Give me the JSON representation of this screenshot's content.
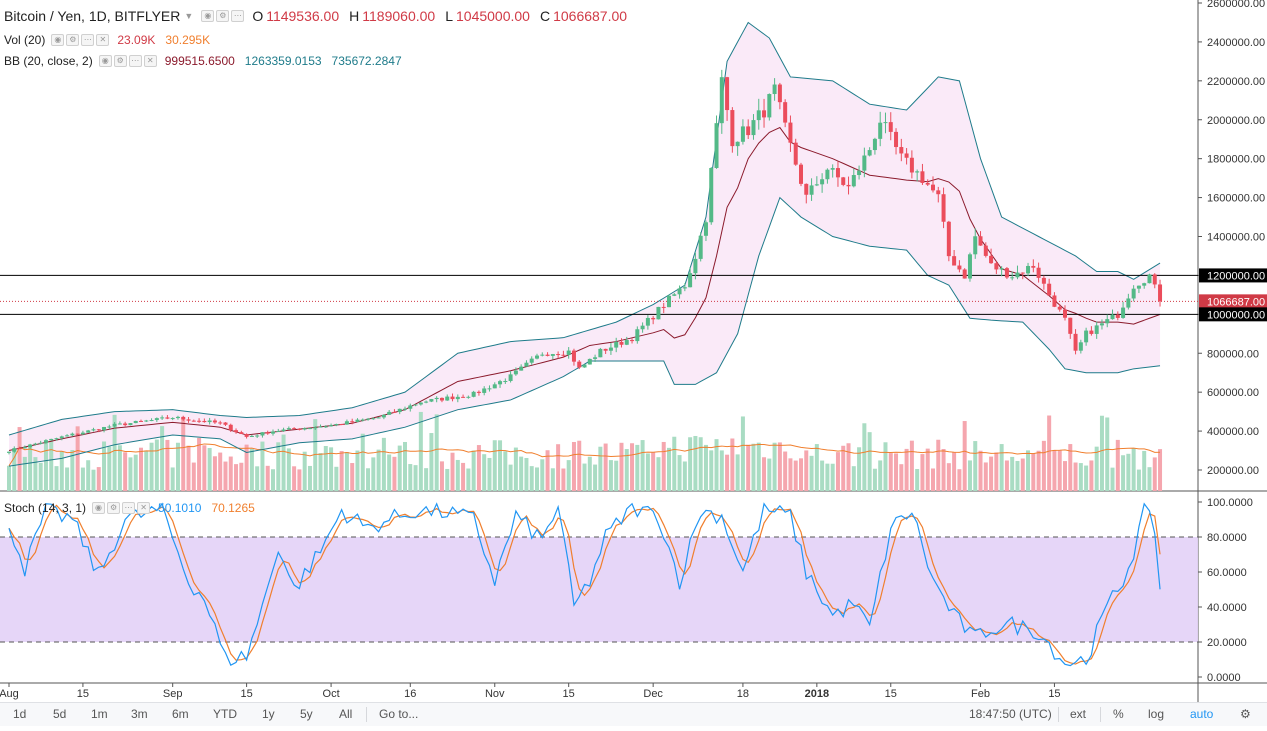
{
  "header": {
    "symbol": "Bitcoin / Yen, 1D, BITFLYER",
    "open_label": "O",
    "open": "1149536.00",
    "high_label": "H",
    "high": "1189060.00",
    "low_label": "L",
    "low": "1045000.00",
    "close_label": "C",
    "close": "1066687.00"
  },
  "indicators": {
    "vol": {
      "label": "Vol (20)",
      "v1": "23.09K",
      "v2": "30.295K",
      "c1": "#d03a46",
      "c2": "#f07f2e"
    },
    "bb": {
      "label": "BB (20, close, 2)",
      "v1": "999515.6500",
      "v2": "1263359.0153",
      "v3": "735672.2847",
      "c1": "#8b1a2c",
      "c2": "#1e7b8a",
      "c3": "#1e7b8a"
    },
    "stoch": {
      "label": "Stoch (14, 3, 1)",
      "v1": "50.1010",
      "v2": "70.1265",
      "c1": "#2196f3",
      "c2": "#f07f2e"
    }
  },
  "price_axis": {
    "ticks": [
      "2600000.00",
      "2400000.00",
      "2200000.00",
      "2000000.00",
      "1800000.00",
      "1600000.00",
      "1400000.00",
      "1200000.00",
      "1000000.00",
      "800000.00",
      "600000.00",
      "400000.00",
      "200000.00"
    ],
    "tick_values": [
      2600000,
      2400000,
      2200000,
      2000000,
      1800000,
      1600000,
      1400000,
      1200000,
      1000000,
      800000,
      600000,
      400000,
      200000
    ],
    "badges": [
      {
        "text": "1200000.00",
        "value": 1200000,
        "color": "#000000"
      },
      {
        "text": "1066687.00",
        "value": 1066687,
        "color": "#d03a46"
      },
      {
        "text": "1000000.00",
        "value": 1000000,
        "color": "#000000"
      }
    ]
  },
  "stoch_axis": {
    "ticks": [
      "100.0000",
      "80.0000",
      "60.0000",
      "40.0000",
      "20.0000",
      "0.0000"
    ],
    "tick_values": [
      100,
      80,
      60,
      40,
      20,
      0
    ]
  },
  "time_axis": {
    "labels": [
      {
        "text": "Aug",
        "day": 0,
        "bold": false
      },
      {
        "text": "15",
        "day": 14,
        "bold": false
      },
      {
        "text": "Sep",
        "day": 31,
        "bold": false
      },
      {
        "text": "15",
        "day": 45,
        "bold": false
      },
      {
        "text": "Oct",
        "day": 61,
        "bold": false
      },
      {
        "text": "16",
        "day": 76,
        "bold": false
      },
      {
        "text": "Nov",
        "day": 92,
        "bold": false
      },
      {
        "text": "15",
        "day": 106,
        "bold": false
      },
      {
        "text": "Dec",
        "day": 122,
        "bold": false
      },
      {
        "text": "18",
        "day": 139,
        "bold": false
      },
      {
        "text": "2018",
        "day": 153,
        "bold": true
      },
      {
        "text": "15",
        "day": 167,
        "bold": false
      },
      {
        "text": "Feb",
        "day": 184,
        "bold": false
      },
      {
        "text": "15",
        "day": 198,
        "bold": false
      }
    ]
  },
  "chart_data": {
    "type": "candlestick",
    "title": "Bitcoin / Yen, 1D, BITFLYER",
    "y_range": [
      0,
      2600000
    ],
    "horizontal_lines": [
      1200000,
      1000000
    ],
    "stoch_levels": [
      80,
      20
    ],
    "stoch_range": [
      0,
      100
    ],
    "volume_scale_max": 500000,
    "colors": {
      "up": "#53b987",
      "down": "#eb4d5c",
      "vol_up": "#a9dcc3",
      "vol_down": "#f5a6ae",
      "bb_basis": "#8b1a2c",
      "bb_band": "#1e7b8a",
      "bb_fill": "#f9e6f7",
      "vol_ma": "#f07f2e",
      "stoch_k": "#2196f3",
      "stoch_d": "#f07f2e",
      "stoch_fill": "#e3d2f7"
    },
    "closes_keypoints": [
      [
        0,
        300000
      ],
      [
        10,
        370000
      ],
      [
        20,
        430000
      ],
      [
        31,
        470000
      ],
      [
        40,
        440000
      ],
      [
        45,
        370000
      ],
      [
        50,
        400000
      ],
      [
        61,
        430000
      ],
      [
        70,
        470000
      ],
      [
        78,
        550000
      ],
      [
        88,
        590000
      ],
      [
        95,
        680000
      ],
      [
        101,
        800000
      ],
      [
        106,
        810000
      ],
      [
        108,
        720000
      ],
      [
        112,
        810000
      ],
      [
        118,
        880000
      ],
      [
        124,
        1050000
      ],
      [
        128,
        1150000
      ],
      [
        130,
        1300000
      ],
      [
        132,
        1500000
      ],
      [
        135,
        2200000
      ],
      [
        137,
        1900000
      ],
      [
        140,
        1950000
      ],
      [
        143,
        2050000
      ],
      [
        145,
        2150000
      ],
      [
        147,
        1950000
      ],
      [
        151,
        1600000
      ],
      [
        155,
        1750000
      ],
      [
        159,
        1650000
      ],
      [
        163,
        1850000
      ],
      [
        165,
        2000000
      ],
      [
        169,
        1800000
      ],
      [
        173,
        1700000
      ],
      [
        176,
        1600000
      ],
      [
        178,
        1300000
      ],
      [
        181,
        1200000
      ],
      [
        183,
        1400000
      ],
      [
        186,
        1250000
      ],
      [
        190,
        1200000
      ],
      [
        194,
        1250000
      ],
      [
        197,
        1100000
      ],
      [
        200,
        970000
      ],
      [
        202,
        800000
      ],
      [
        204,
        900000
      ],
      [
        207,
        950000
      ],
      [
        210,
        1000000
      ],
      [
        213,
        1150000
      ],
      [
        216,
        1200000
      ],
      [
        218,
        1066687
      ]
    ],
    "bb_upper_keypoints": [
      [
        0,
        380000
      ],
      [
        10,
        460000
      ],
      [
        20,
        500000
      ],
      [
        31,
        510000
      ],
      [
        40,
        480000
      ],
      [
        45,
        470000
      ],
      [
        55,
        480000
      ],
      [
        65,
        520000
      ],
      [
        75,
        600000
      ],
      [
        85,
        800000
      ],
      [
        95,
        860000
      ],
      [
        105,
        880000
      ],
      [
        115,
        960000
      ],
      [
        122,
        1050000
      ],
      [
        128,
        1150000
      ],
      [
        132,
        1500000
      ],
      [
        136,
        2300000
      ],
      [
        140,
        2500000
      ],
      [
        144,
        2420000
      ],
      [
        148,
        2220000
      ],
      [
        156,
        2200000
      ],
      [
        163,
        2080000
      ],
      [
        170,
        2050000
      ],
      [
        176,
        2220000
      ],
      [
        180,
        2200000
      ],
      [
        184,
        1800000
      ],
      [
        188,
        1500000
      ],
      [
        195,
        1400000
      ],
      [
        202,
        1300000
      ],
      [
        206,
        1220000
      ],
      [
        210,
        1220000
      ],
      [
        213,
        1180000
      ],
      [
        218,
        1263359
      ]
    ],
    "bb_lower_keypoints": [
      [
        0,
        220000
      ],
      [
        10,
        260000
      ],
      [
        20,
        330000
      ],
      [
        31,
        380000
      ],
      [
        40,
        360000
      ],
      [
        45,
        290000
      ],
      [
        55,
        340000
      ],
      [
        65,
        360000
      ],
      [
        75,
        420000
      ],
      [
        85,
        510000
      ],
      [
        95,
        560000
      ],
      [
        105,
        680000
      ],
      [
        110,
        760000
      ],
      [
        118,
        760000
      ],
      [
        124,
        760000
      ],
      [
        126,
        640000
      ],
      [
        130,
        640000
      ],
      [
        134,
        700000
      ],
      [
        138,
        900000
      ],
      [
        142,
        1300000
      ],
      [
        146,
        1600000
      ],
      [
        150,
        1500000
      ],
      [
        156,
        1400000
      ],
      [
        163,
        1350000
      ],
      [
        170,
        1330000
      ],
      [
        174,
        1200000
      ],
      [
        178,
        1150000
      ],
      [
        182,
        980000
      ],
      [
        186,
        970000
      ],
      [
        192,
        960000
      ],
      [
        197,
        820000
      ],
      [
        200,
        720000
      ],
      [
        204,
        700000
      ],
      [
        210,
        700000
      ],
      [
        213,
        720000
      ],
      [
        218,
        735673
      ]
    ],
    "stoch_keypoints": [
      [
        0,
        88
      ],
      [
        3,
        62
      ],
      [
        7,
        95
      ],
      [
        12,
        90
      ],
      [
        17,
        58
      ],
      [
        22,
        90
      ],
      [
        29,
        96
      ],
      [
        34,
        55
      ],
      [
        37,
        45
      ],
      [
        41,
        10
      ],
      [
        45,
        12
      ],
      [
        48,
        40
      ],
      [
        51,
        75
      ],
      [
        54,
        50
      ],
      [
        59,
        72
      ],
      [
        63,
        95
      ],
      [
        68,
        85
      ],
      [
        72,
        90
      ],
      [
        77,
        95
      ],
      [
        83,
        94
      ],
      [
        88,
        90
      ],
      [
        92,
        55
      ],
      [
        96,
        92
      ],
      [
        101,
        78
      ],
      [
        104,
        98
      ],
      [
        107,
        40
      ],
      [
        110,
        55
      ],
      [
        113,
        80
      ],
      [
        118,
        97
      ],
      [
        123,
        92
      ],
      [
        127,
        55
      ],
      [
        131,
        95
      ],
      [
        135,
        92
      ],
      [
        139,
        60
      ],
      [
        143,
        96
      ],
      [
        148,
        92
      ],
      [
        151,
        60
      ],
      [
        156,
        35
      ],
      [
        160,
        42
      ],
      [
        163,
        28
      ],
      [
        167,
        85
      ],
      [
        171,
        95
      ],
      [
        175,
        55
      ],
      [
        179,
        35
      ],
      [
        183,
        22
      ],
      [
        186,
        28
      ],
      [
        190,
        30
      ],
      [
        195,
        26
      ],
      [
        200,
        8
      ],
      [
        204,
        10
      ],
      [
        208,
        40
      ],
      [
        211,
        55
      ],
      [
        213,
        72
      ],
      [
        215,
        95
      ],
      [
        217,
        85
      ],
      [
        218,
        50
      ]
    ],
    "stoch_d_end": 70.1265
  }
}
